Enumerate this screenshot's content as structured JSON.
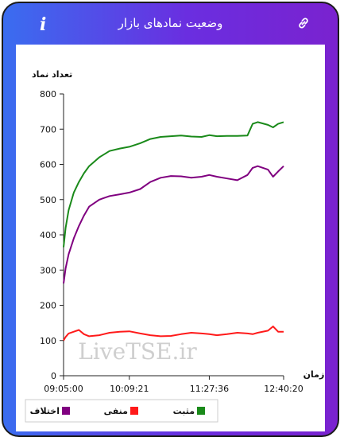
{
  "header": {
    "title": "وضعیت نمادهای بازار",
    "info_icon": "i",
    "link_icon": "link-icon"
  },
  "watermark": "LiveTSE.ir",
  "chart_data": {
    "type": "line",
    "ylabel": "تعداد نماد",
    "xlabel": "زمان",
    "ylim": [
      0,
      800
    ],
    "yticks": [
      0,
      100,
      200,
      300,
      400,
      500,
      600,
      700,
      800
    ],
    "xticks": [
      "09:05:00",
      "10:09:21",
      "11:27:36",
      "12:40:20"
    ],
    "xlim": [
      "09:05:00",
      "12:40:20"
    ],
    "grid": false,
    "legend_position": "bottom",
    "x": [
      "09:05:00",
      "09:07:00",
      "09:10:00",
      "09:15:00",
      "09:20:00",
      "09:25:00",
      "09:30:00",
      "09:40:00",
      "09:50:00",
      "10:00:00",
      "10:09:21",
      "10:20:00",
      "10:30:00",
      "10:40:00",
      "10:50:00",
      "11:00:00",
      "11:10:00",
      "11:20:00",
      "11:27:36",
      "11:35:00",
      "11:45:00",
      "11:55:00",
      "12:05:00",
      "12:10:00",
      "12:15:00",
      "12:25:00",
      "12:30:00",
      "12:35:00",
      "12:40:20"
    ],
    "series": [
      {
        "name": "مثبت",
        "color": "#1a8a1a",
        "values": [
          365,
          420,
          470,
          520,
          550,
          575,
          595,
          620,
          638,
          645,
          650,
          660,
          672,
          678,
          680,
          682,
          679,
          678,
          683,
          680,
          681,
          681,
          682,
          715,
          720,
          712,
          705,
          715,
          720
        ]
      },
      {
        "name": "منفی",
        "color": "#ff1a1a",
        "values": [
          100,
          110,
          120,
          125,
          130,
          118,
          112,
          115,
          122,
          125,
          126,
          120,
          115,
          112,
          113,
          118,
          122,
          120,
          118,
          115,
          118,
          122,
          120,
          118,
          122,
          128,
          140,
          125,
          125
        ]
      },
      {
        "name": "اختلاف",
        "color": "#800080",
        "values": [
          262,
          305,
          345,
          390,
          425,
          455,
          480,
          500,
          510,
          515,
          520,
          530,
          550,
          562,
          567,
          566,
          562,
          565,
          570,
          565,
          560,
          555,
          570,
          590,
          595,
          585,
          565,
          580,
          595
        ]
      }
    ]
  }
}
